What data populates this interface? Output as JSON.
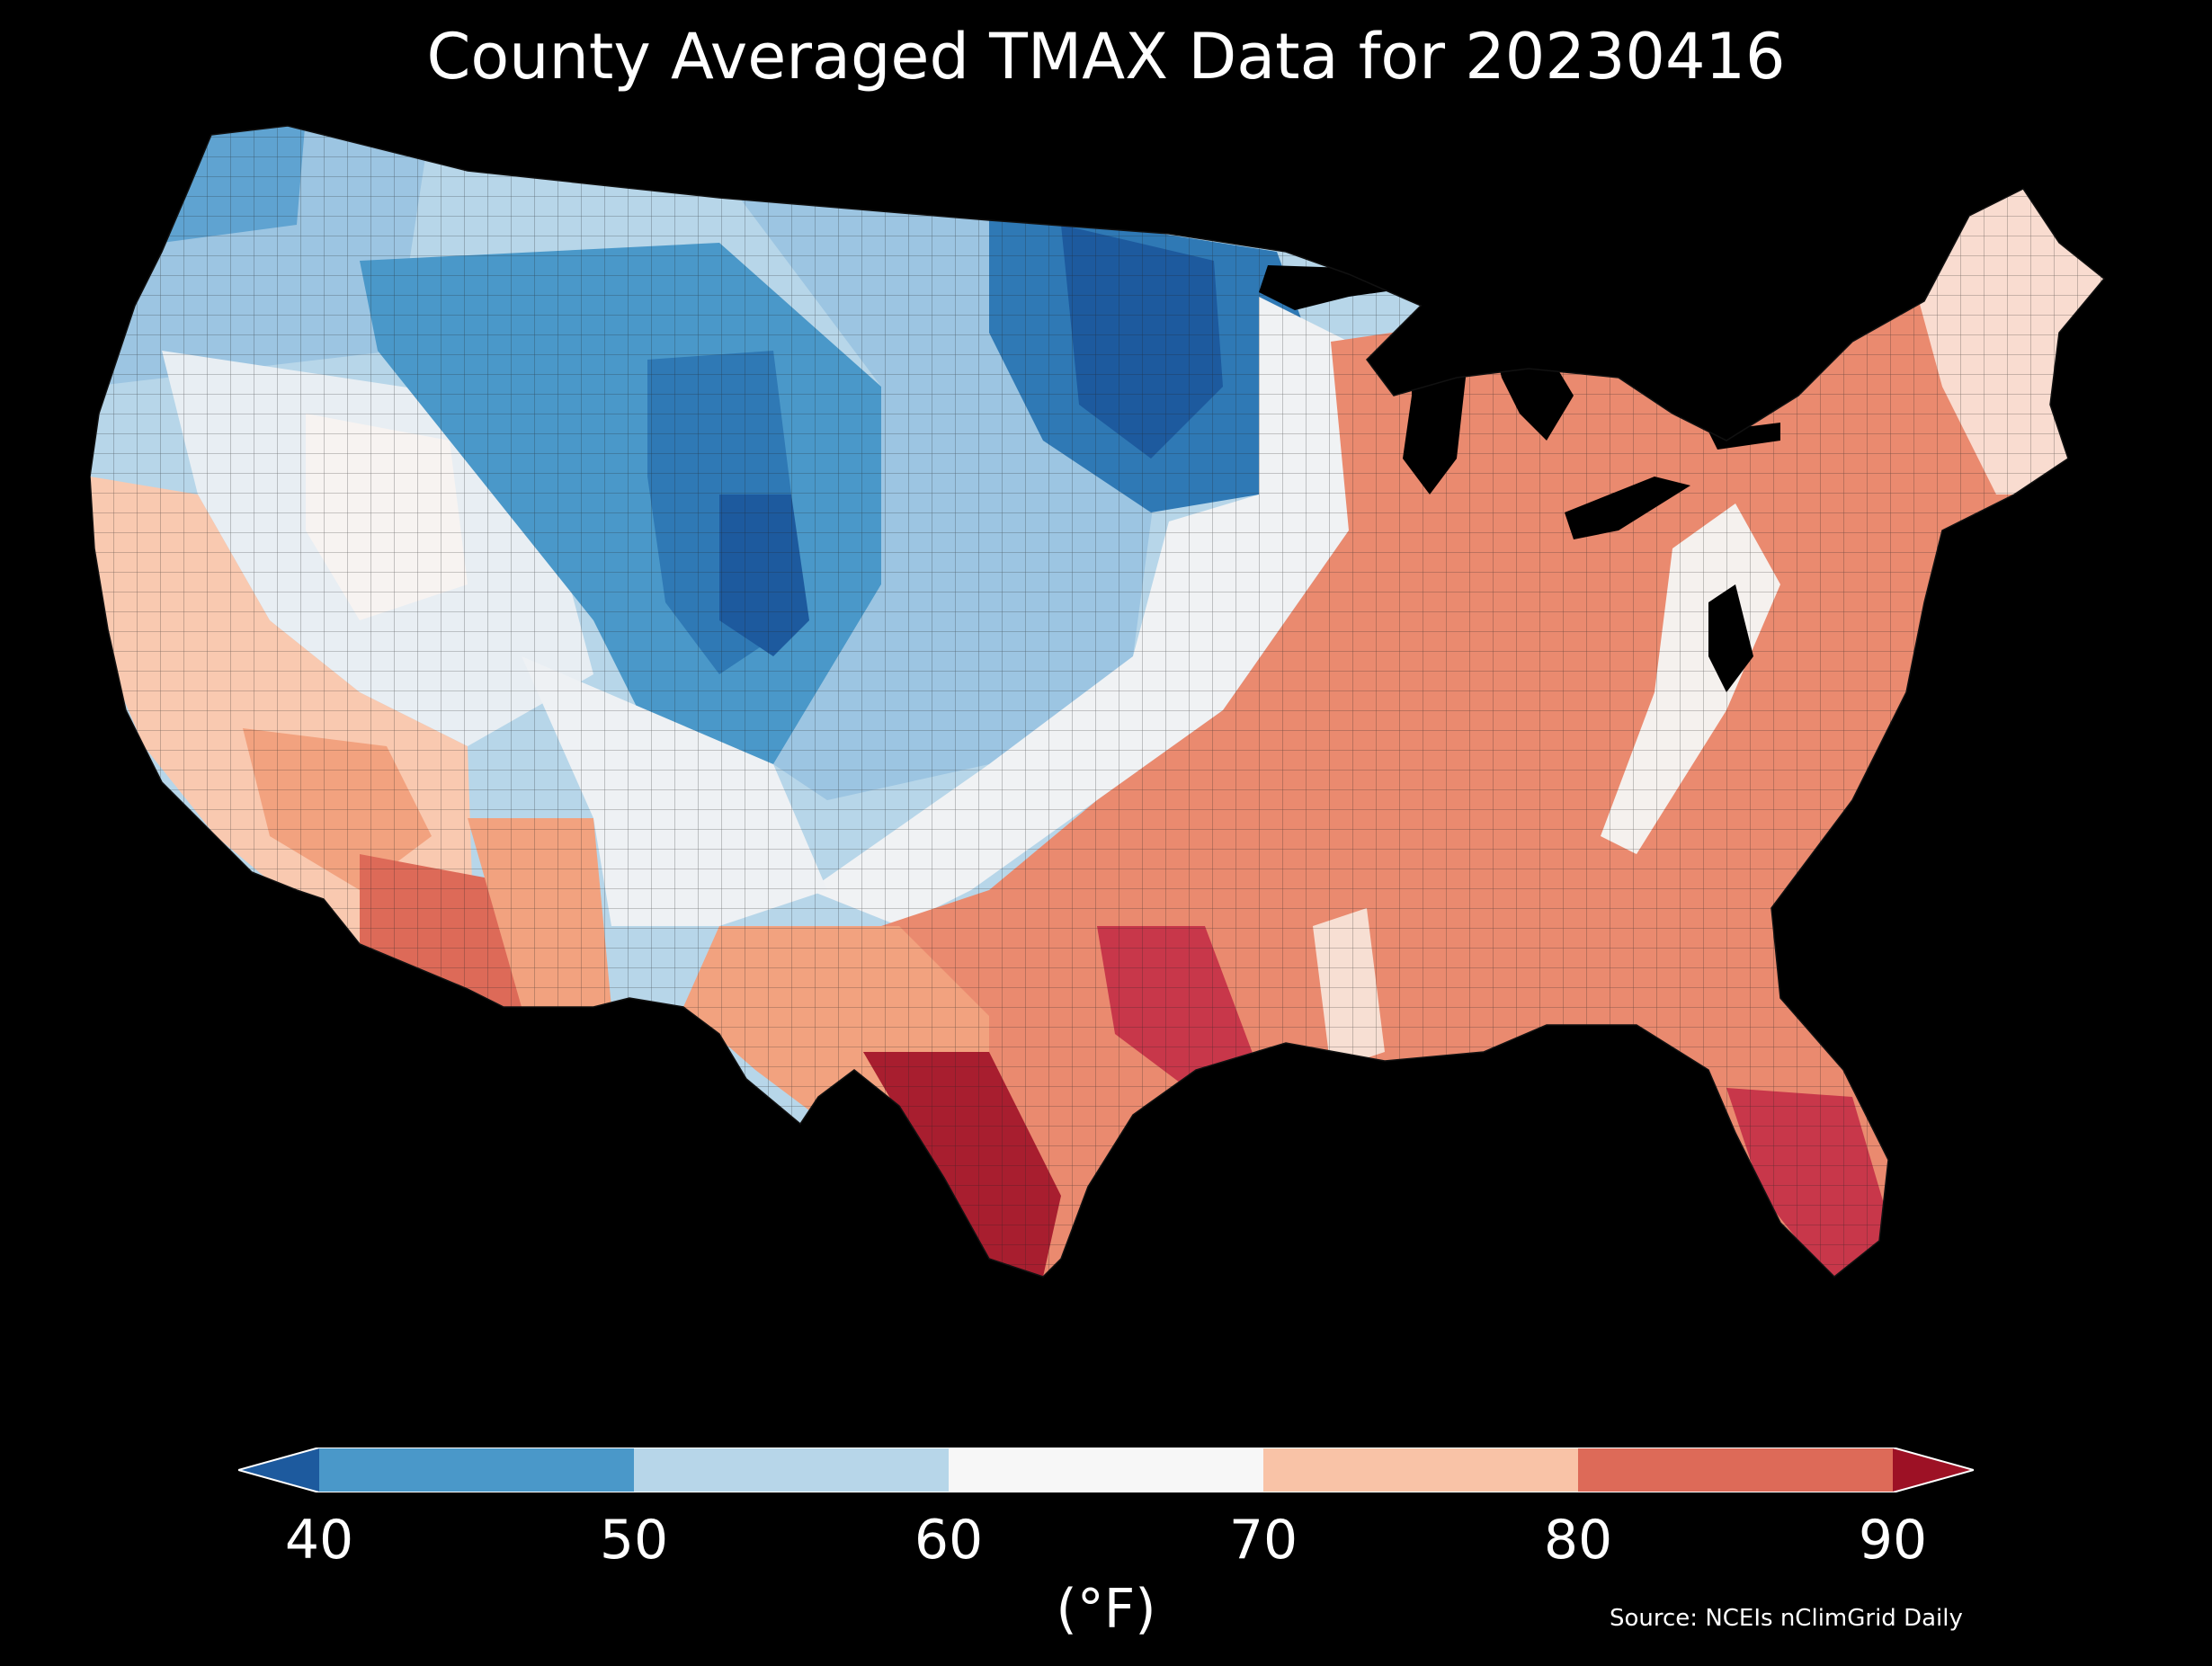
{
  "title": "County Averaged TMAX Data for 20230416",
  "colorbar": {
    "ticks": [
      "40",
      "50",
      "60",
      "70",
      "80",
      "90"
    ],
    "unit": "(°F)",
    "bins": [
      {
        "range": [
          null,
          40
        ],
        "color": "#1d5a9e"
      },
      {
        "range": [
          40,
          50
        ],
        "color": "#4a98c9"
      },
      {
        "range": [
          50,
          60
        ],
        "color": "#b7d6e9"
      },
      {
        "range": [
          60,
          70
        ],
        "color": "#f7f7f7"
      },
      {
        "range": [
          70,
          80
        ],
        "color": "#f9c3a7"
      },
      {
        "range": [
          80,
          90
        ],
        "color": "#dd6a58"
      },
      {
        "range": [
          90,
          null
        ],
        "color": "#9d1125"
      }
    ]
  },
  "source": "Source: NCEIs nClimGrid Daily",
  "colors": {
    "background": "#000000",
    "text": "#ffffff",
    "deep_blue": "#1d5a9e",
    "mid_blue": "#4a98c9",
    "light_blue": "#b7d6e9",
    "neutral": "#f7f7f7",
    "light_red": "#f9c3a7",
    "mid_red": "#dd6a58",
    "deep_red": "#9d1125"
  }
}
